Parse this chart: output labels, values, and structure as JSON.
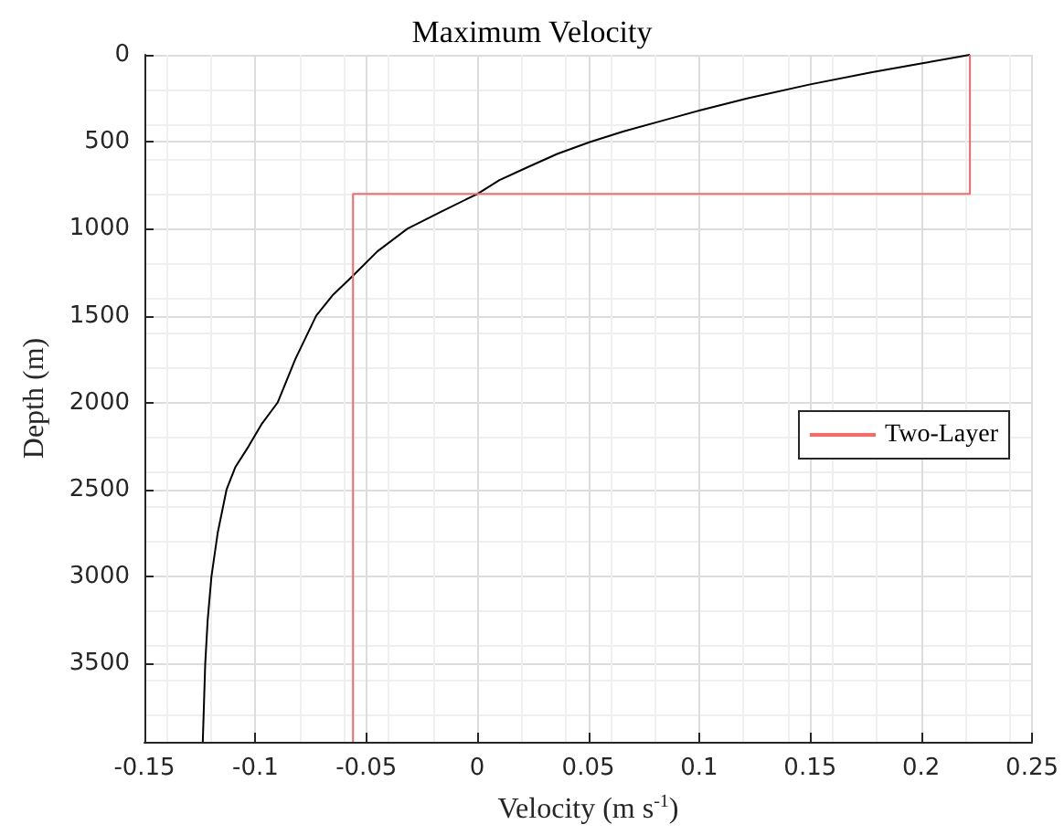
{
  "chart_data": {
    "type": "line",
    "title": "Maximum Velocity",
    "xlabel": "Velocity (m s$^{-1}$)",
    "ylabel": "Depth (m)",
    "xlim": [
      -0.15,
      0.25
    ],
    "xticks": [
      -0.15,
      -0.1,
      -0.05,
      0,
      0.05,
      0.1,
      0.15,
      0.2,
      0.25
    ],
    "ylim": [
      3950,
      0
    ],
    "yticks": [
      0,
      500,
      1000,
      1500,
      2000,
      2500,
      3000,
      3500
    ],
    "grid": true,
    "legend": "right",
    "marker": "none",
    "line_style": "solid",
    "series": [
      {
        "color": "#000000",
        "x": [
          0.222,
          0.2,
          0.178,
          0.15,
          0.122,
          0.1,
          0.083,
          0.066,
          0.051,
          0.036,
          0.022,
          0.01,
          0,
          -0.016,
          -0.0315,
          -0.045,
          -0.056,
          -0.065,
          -0.0726,
          -0.082,
          -0.09,
          -0.097,
          -0.103,
          -0.109,
          -0.113,
          -0.117,
          -0.1198,
          -0.1215,
          -0.1226,
          -0.1237
        ],
        "values": [
          0,
          50,
          100,
          170,
          250,
          320,
          380,
          440,
          500,
          570,
          650,
          720,
          800,
          900,
          1000,
          1130,
          1270,
          1380,
          1500,
          1750,
          2000,
          2120,
          2250,
          2370,
          2500,
          2750,
          3000,
          3250,
          3500,
          3950
        ]
      },
      {
        "name": "Two-Layer",
        "color": "#ff6666",
        "x": [
          0.222,
          0.222,
          -0.056,
          -0.056
        ],
        "values": [
          0,
          800,
          800,
          3950
        ]
      }
    ]
  }
}
